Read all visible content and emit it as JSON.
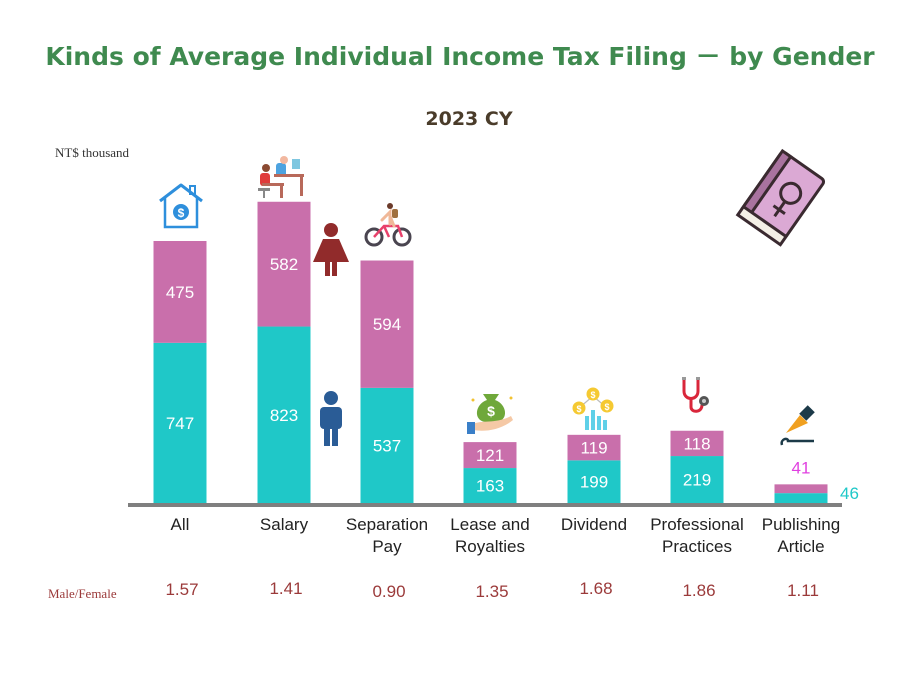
{
  "colors": {
    "title": "#3f8a4f",
    "subtitle": "#4a3c2a",
    "male": "#1fc8c8",
    "female": "#c96fab",
    "axis": "#7f7f7f",
    "ratio": "#9b3a3a",
    "small_female_label": "#e040e0",
    "small_male_label": "#1fc8c8",
    "female_icon": "#912b2b",
    "male_icon": "#2a5c96"
  },
  "icons": {
    "female_legend": "female-person-icon",
    "male_legend": "male-person-icon",
    "book": "female-symbol-book-icon",
    "categories": [
      "house-dollar-icon",
      "office-workers-icon",
      "cyclist-icon",
      "money-bag-hand-icon",
      "coins-chart-icon",
      "stethoscope-icon",
      "fountain-pen-icon"
    ]
  },
  "chart_data": {
    "type": "bar",
    "stacked": true,
    "title": "Kinds of Average Individual Income Tax Filing － by Gender",
    "subtitle": "2023  CY",
    "ylabel": "NT$ thousand",
    "xlabel": "",
    "categories": [
      "All",
      "Salary",
      "Separation Pay",
      "Lease and Royalties",
      "Dividend",
      "Professional Practices",
      "Publishing Article"
    ],
    "category_lines": [
      [
        "All"
      ],
      [
        "Salary"
      ],
      [
        "Separation",
        "Pay"
      ],
      [
        "Lease and",
        "Royalties"
      ],
      [
        "Dividend"
      ],
      [
        "Professional",
        "Practices"
      ],
      [
        "Publishing",
        "Article"
      ]
    ],
    "series": [
      {
        "name": "Male",
        "values": [
          747,
          823,
          537,
          163,
          199,
          219,
          46
        ]
      },
      {
        "name": "Female",
        "values": [
          475,
          582,
          594,
          121,
          119,
          118,
          41
        ]
      }
    ],
    "ylim": [
      0,
      1222
    ],
    "grid": false,
    "legend": "icons beside Salary bar (female top, male bottom)",
    "ratio_label": "Male/Female",
    "ratios": [
      "1.57",
      "1.41",
      "0.90",
      "1.35",
      "1.68",
      "1.86",
      "1.11"
    ]
  }
}
